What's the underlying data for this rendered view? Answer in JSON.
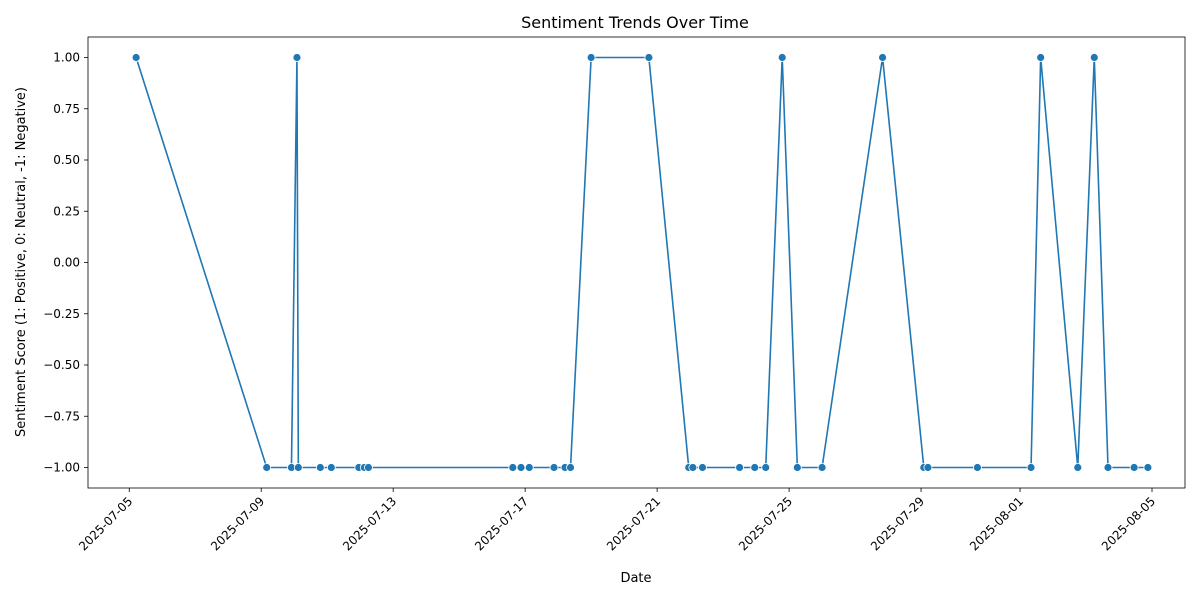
{
  "chart_data": {
    "type": "line",
    "title": "Sentiment Trends Over Time",
    "xlabel": "Date",
    "ylabel": "Sentiment Score (1: Positive, 0: Neutral, -1: Negative)",
    "xlim": [
      "2025-07-03T18:00",
      "2025-08-06T00:00"
    ],
    "ylim": [
      -1.1,
      1.1
    ],
    "grid": false,
    "legend": "none",
    "line_color": "#1f77b4",
    "marker": "circle",
    "x_ticks": [
      "2025-07-05",
      "2025-07-09",
      "2025-07-13",
      "2025-07-17",
      "2025-07-21",
      "2025-07-25",
      "2025-07-29",
      "2025-08-01",
      "2025-08-05"
    ],
    "y_ticks": [
      "1.00",
      "0.75",
      "0.50",
      "0.25",
      "0.00",
      "−0.25",
      "−0.50",
      "−0.75",
      "−1.00"
    ],
    "y_tick_values": [
      1,
      0.75,
      0.5,
      0.25,
      0,
      -0.25,
      -0.5,
      -0.75,
      -1
    ],
    "series": [
      {
        "x": [
          "2025-07-05T05:00",
          "2025-07-09T04:00",
          "2025-07-09T22:00",
          "2025-07-10T02:00",
          "2025-07-10T03:00",
          "2025-07-10T19:00",
          "2025-07-11T03:00",
          "2025-07-11T23:00",
          "2025-07-12T03:00",
          "2025-07-12T06:00",
          "2025-07-16T15:00",
          "2025-07-16T21:00",
          "2025-07-17T03:00",
          "2025-07-17T21:00",
          "2025-07-18T05:00",
          "2025-07-18T09:00",
          "2025-07-19T00:00",
          "2025-07-20T18:00",
          "2025-07-21T23:00",
          "2025-07-22T02:00",
          "2025-07-22T09:00",
          "2025-07-23T12:00",
          "2025-07-23T23:00",
          "2025-07-24T07:00",
          "2025-07-24T19:00",
          "2025-07-25T06:00",
          "2025-07-26T00:00",
          "2025-07-27T20:00",
          "2025-07-29T02:00",
          "2025-07-29T05:00",
          "2025-07-30T17:00",
          "2025-08-01T08:00",
          "2025-08-01T15:00",
          "2025-08-02T18:00",
          "2025-08-03T06:00",
          "2025-08-03T16:00",
          "2025-08-04T11:00",
          "2025-08-04T21:00"
        ],
        "y": [
          1,
          -1,
          -1,
          1,
          -1,
          -1,
          -1,
          -1,
          -1,
          -1,
          -1,
          -1,
          -1,
          -1,
          -1,
          -1,
          1,
          1,
          -1,
          -1,
          -1,
          -1,
          -1,
          -1,
          1,
          -1,
          -1,
          1,
          -1,
          -1,
          -1,
          -1,
          1,
          -1,
          1,
          -1,
          -1,
          -1
        ]
      }
    ]
  }
}
